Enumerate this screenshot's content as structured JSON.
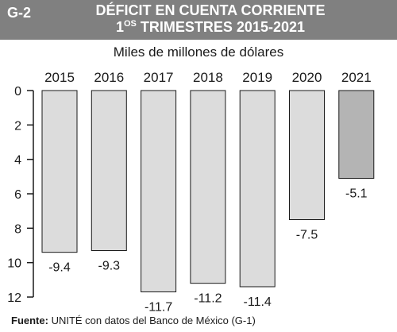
{
  "figure_id": "G-2",
  "title_line1": "DÉFICIT EN CUENTA CORRIENTE",
  "title_line2_ordinal": "1",
  "title_line2_superscript": "OS",
  "title_line2_rest": " TRIMESTRES 2015-2021",
  "unit_label": "Miles de millones de dólares",
  "source_label": "Fuente:",
  "source_text": " UNITÉ con datos del Banco de México (G-1)",
  "colors": {
    "banner": "#808080",
    "bar": "#dcdcdc",
    "bar_highlight": "#b4b4b4",
    "bar_stroke": "#1a1a1a"
  },
  "chart_data": {
    "type": "bar",
    "orientation": "vertical, inverted (bars hang down from 0)",
    "categories": [
      "2015",
      "2016",
      "2017",
      "2018",
      "2019",
      "2020",
      "2021"
    ],
    "values": [
      -9.4,
      -9.3,
      -11.7,
      -11.2,
      -11.4,
      -7.5,
      -5.1
    ],
    "value_labels": [
      "-9.4",
      "-9.3",
      "-11.7",
      "-11.2",
      "-11.4",
      "-7.5",
      "-5.1"
    ],
    "y_ticks": [
      0,
      2,
      4,
      6,
      8,
      10,
      12
    ],
    "ylim": [
      0,
      12
    ],
    "highlight_category": "2021",
    "grid": false,
    "legend": "none"
  }
}
